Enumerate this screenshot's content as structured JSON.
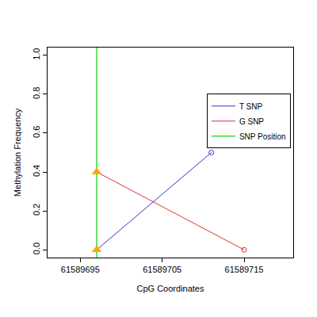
{
  "chart_data": {
    "type": "line",
    "x_label": "CpG Coordinates",
    "y_label": "Methylation Frequency",
    "xlim": [
      61589691,
      61589721
    ],
    "ylim": [
      -0.04,
      1.04
    ],
    "xticks": [
      61589695,
      61589705,
      61589715
    ],
    "yticks": [
      {
        "value": 0,
        "label": "0.0"
      },
      0.2,
      0.4,
      0.6,
      0.8,
      {
        "value": 1,
        "label": "1.0"
      }
    ],
    "grid": false,
    "legend": "right",
    "snp_position": {
      "name": "SNP Position",
      "color": "#33dd33",
      "x": 61589697,
      "marker": "triangle-up",
      "marker_color": "#ffa500"
    },
    "series": [
      {
        "name": "T SNP",
        "color": "#3333cc",
        "x": [
          61589697,
          61589711
        ],
        "values": [
          0.0,
          0.5
        ],
        "marker": "circle-open"
      },
      {
        "name": "G SNP",
        "color": "#dd3333",
        "x": [
          61589697,
          61589715
        ],
        "values": [
          0.4,
          0.0
        ],
        "marker": "circle-open"
      }
    ]
  }
}
